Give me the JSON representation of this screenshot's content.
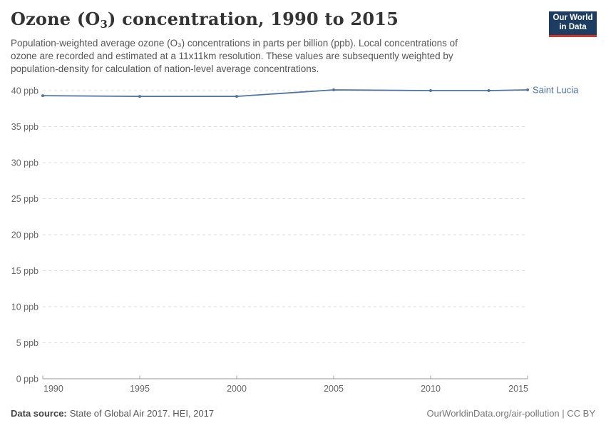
{
  "header": {
    "title": {
      "pre": "Ozone (O",
      "sub": "3",
      "post": ") concentration, 1990 to 2015"
    },
    "subtitle_lines": [
      "Population-weighted average ozone (O₃) concentrations in parts per billion (ppb). Local concentrations of",
      "ozone are recorded and estimated at a 11x11km resolution. These values are subsequently weighted by",
      "population-density for calculation of nation-level average concentrations."
    ],
    "logo": {
      "line1": "Our World",
      "line2": "in Data"
    }
  },
  "footer": {
    "data_source_label": "Data source:",
    "data_source_value": "State of Global Air 2017. HEI, 2017",
    "link_text": "OurWorldinData.org/air-pollution | CC BY"
  },
  "colors": {
    "line": "#4e74a6",
    "entity_label": "#4a70a4",
    "logo_bg": "#1d3d63",
    "logo_red": "#c8362c",
    "grid": "#dddddd",
    "axis": "#999999",
    "tick_label": "#666666",
    "title_text": "#333333",
    "subtitle_text": "#555555"
  },
  "chart_data": {
    "type": "line",
    "title": "Ozone (O₃) concentration, 1990 to 2015",
    "xlabel": "",
    "ylabel": "ppb",
    "x": [
      1990,
      1995,
      2000,
      2005,
      2010,
      2013,
      2015
    ],
    "series": [
      {
        "name": "Saint Lucia",
        "values": [
          39.3,
          39.2,
          39.2,
          40.1,
          40.0,
          40.0,
          40.1
        ]
      }
    ],
    "xlim": [
      1990,
      2015
    ],
    "ylim": [
      0,
      40
    ],
    "yticks": [
      0,
      5,
      10,
      15,
      20,
      25,
      30,
      35,
      40
    ],
    "ytick_suffix": " ppb",
    "xticks": [
      1990,
      1995,
      2000,
      2005,
      2010,
      2015
    ],
    "grid": true,
    "grid_style": "dashed-horizontal",
    "legend_position": "end-of-line-label"
  }
}
